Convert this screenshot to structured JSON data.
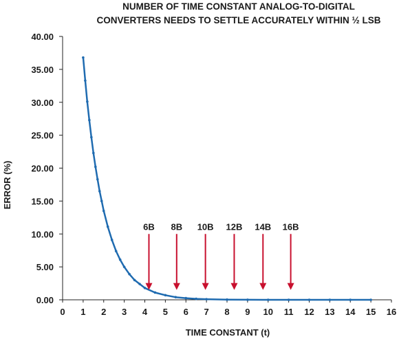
{
  "chart_data": {
    "type": "line",
    "title_lines": [
      "NUMBER OF TIME CONSTANT ANALOG-TO-DIGITAL",
      "CONVERTERS NEEDS TO SETTLE ACCURATELY WITHIN ½ LSB"
    ],
    "xlabel": "TIME CONSTANT (t)",
    "ylabel": "ERROR (%)",
    "xlim": [
      0,
      16
    ],
    "ylim": [
      0,
      40
    ],
    "x_ticks": [
      0,
      1,
      2,
      3,
      4,
      5,
      6,
      7,
      8,
      9,
      10,
      11,
      12,
      13,
      14,
      15,
      16
    ],
    "y_ticks": [
      "0.00",
      "5.00",
      "10.00",
      "15.00",
      "20.00",
      "25.00",
      "30.00",
      "35.00",
      "40.00"
    ],
    "grid": false,
    "series": [
      {
        "color": "#1f6bb0",
        "x": [
          1,
          1.1,
          1.2,
          1.3,
          1.4,
          1.5,
          1.6,
          1.7,
          1.8,
          1.9,
          2,
          2.2,
          2.4,
          2.6,
          2.8,
          3,
          3.25,
          3.5,
          3.75,
          4,
          4.5,
          5,
          5.5,
          6,
          6.5,
          7,
          8,
          9,
          10,
          11,
          12,
          13,
          14,
          15
        ],
        "y": [
          36.8,
          33.3,
          30.1,
          27.3,
          24.7,
          22.3,
          20.2,
          18.3,
          16.5,
          15.0,
          13.5,
          11.1,
          9.1,
          7.4,
          6.1,
          5.0,
          3.9,
          3.0,
          2.4,
          1.8,
          1.1,
          0.7,
          0.4,
          0.25,
          0.15,
          0.09,
          0.03,
          0.01,
          0,
          0,
          0,
          0,
          0,
          0
        ]
      }
    ],
    "annotations": [
      {
        "label": "6B",
        "x": 4.2,
        "y_top": 10.0,
        "y_bottom": 1.5
      },
      {
        "label": "8B",
        "x": 5.55,
        "y_top": 10.0,
        "y_bottom": 1.5
      },
      {
        "label": "10B",
        "x": 6.95,
        "y_top": 10.0,
        "y_bottom": 1.5
      },
      {
        "label": "12B",
        "x": 8.35,
        "y_top": 10.0,
        "y_bottom": 1.5
      },
      {
        "label": "14B",
        "x": 9.75,
        "y_top": 10.0,
        "y_bottom": 1.5
      },
      {
        "label": "16B",
        "x": 11.1,
        "y_top": 10.0,
        "y_bottom": 1.5
      }
    ],
    "annotation_color": "#c8102e"
  }
}
